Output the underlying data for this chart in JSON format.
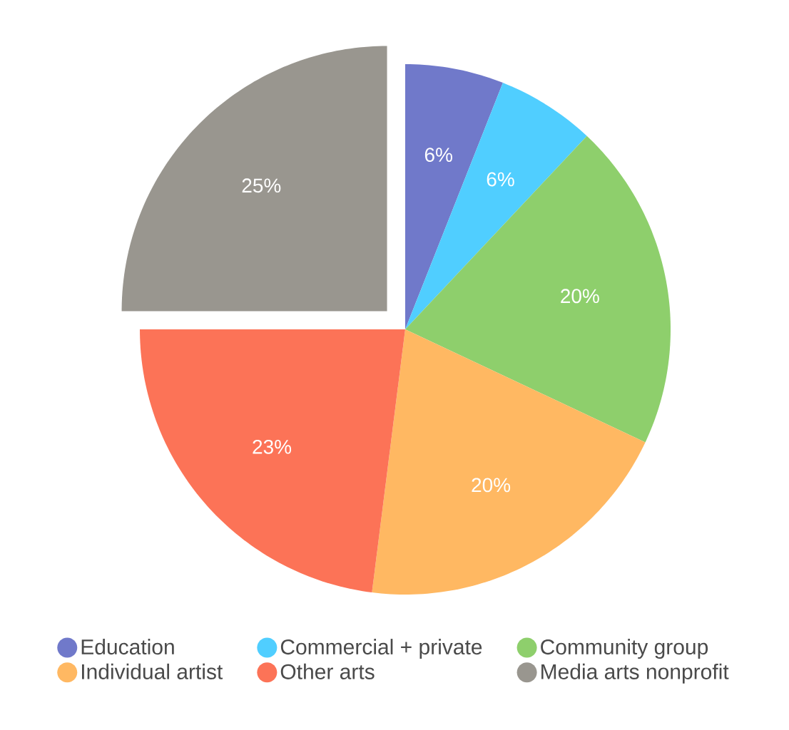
{
  "chart_data": {
    "type": "pie",
    "categories": [
      "Education",
      "Commercial + private",
      "Community group",
      "Individual artist",
      "Other arts",
      "Media arts nonprofit"
    ],
    "values": [
      6,
      6,
      20,
      20,
      23,
      25
    ],
    "colors": [
      "#7079CA",
      "#50CEFF",
      "#8ECF6C",
      "#FFB862",
      "#FC7357",
      "#99968F"
    ],
    "value_labels": [
      "6%",
      "6%",
      "20%",
      "20%",
      "23%",
      "25%"
    ],
    "legend": "bottom"
  }
}
